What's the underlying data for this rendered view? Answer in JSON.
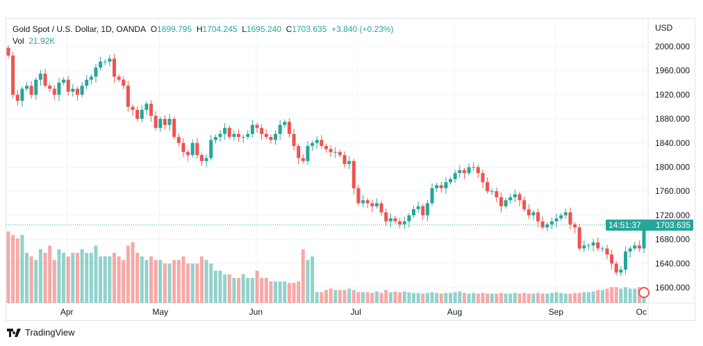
{
  "legend": {
    "symbol": "Gold Spot / U.S. Dollar, 1D, OANDA",
    "open_label": "O",
    "open": "1699.795",
    "high_label": "H",
    "high": "1704.245",
    "low_label": "L",
    "low": "1695.240",
    "close_label": "C",
    "close": "1703.635",
    "change": "+3.840 (+0.23%)",
    "vol_label": "Vol",
    "vol": "21.92K"
  },
  "currency": "USD",
  "current_price": "1703.635",
  "countdown": "14:51:37",
  "brand": "TradingView",
  "colors": {
    "up": "#26a69a",
    "down": "#ef5350"
  },
  "chart_data": {
    "type": "candlestick",
    "title": "Gold Spot / U.S. Dollar, 1D, OANDA",
    "ylim": [
      1580,
      2040
    ],
    "y_ticks": [
      1600,
      1640,
      1680,
      1720,
      1760,
      1800,
      1840,
      1880,
      1920,
      1960,
      2000
    ],
    "y_tick_labels": [
      "1600.000",
      "1640.000",
      "1680.000",
      "1720.000",
      "1760.000",
      "1800.000",
      "1840.000",
      "1880.000",
      "1920.000",
      "1960.000",
      "2000.000"
    ],
    "x_labels": [
      {
        "label": "Apr",
        "index": 14
      },
      {
        "label": "May",
        "index": 34
      },
      {
        "label": "Jun",
        "index": 55
      },
      {
        "label": "Jul",
        "index": 77
      },
      {
        "label": "Aug",
        "index": 98
      },
      {
        "label": "Sep",
        "index": 120
      },
      {
        "label": "Oc",
        "index": 139
      }
    ],
    "first_open": 1998,
    "closes": [
      1985,
      1920,
      1910,
      1930,
      1935,
      1920,
      1945,
      1955,
      1935,
      1930,
      1920,
      1940,
      1945,
      1925,
      1930,
      1920,
      1935,
      1945,
      1950,
      1965,
      1975,
      1975,
      1980,
      1950,
      1945,
      1935,
      1900,
      1895,
      1880,
      1895,
      1905,
      1885,
      1865,
      1880,
      1870,
      1880,
      1850,
      1840,
      1825,
      1820,
      1840,
      1820,
      1810,
      1815,
      1845,
      1850,
      1855,
      1865,
      1850,
      1855,
      1850,
      1850,
      1855,
      1870,
      1865,
      1855,
      1850,
      1845,
      1855,
      1870,
      1875,
      1855,
      1835,
      1815,
      1810,
      1835,
      1840,
      1845,
      1835,
      1830,
      1825,
      1825,
      1820,
      1805,
      1810,
      1765,
      1740,
      1745,
      1740,
      1735,
      1740,
      1725,
      1710,
      1715,
      1710,
      1705,
      1710,
      1720,
      1730,
      1735,
      1720,
      1740,
      1765,
      1770,
      1765,
      1775,
      1780,
      1790,
      1795,
      1790,
      1800,
      1800,
      1790,
      1775,
      1760,
      1760,
      1750,
      1735,
      1745,
      1750,
      1755,
      1745,
      1730,
      1720,
      1725,
      1710,
      1700,
      1705,
      1710,
      1715,
      1720,
      1725,
      1705,
      1700,
      1665,
      1670,
      1670,
      1675,
      1665,
      1665,
      1655,
      1640,
      1625,
      1630,
      1660,
      1665,
      1670,
      1665,
      1704
    ],
    "volume_relative": [
      100,
      95,
      90,
      95,
      70,
      65,
      60,
      75,
      70,
      80,
      60,
      75,
      70,
      65,
      70,
      70,
      75,
      70,
      70,
      80,
      65,
      65,
      65,
      70,
      65,
      60,
      80,
      85,
      70,
      65,
      60,
      65,
      60,
      60,
      55,
      55,
      60,
      60,
      65,
      55,
      55,
      55,
      65,
      60,
      55,
      45,
      45,
      40,
      40,
      35,
      35,
      40,
      35,
      35,
      45,
      35,
      35,
      30,
      30,
      30,
      30,
      28,
      28,
      30,
      75,
      60,
      65,
      15,
      15,
      18,
      20,
      18,
      18,
      18,
      20,
      18,
      15,
      15,
      15,
      14,
      16,
      14,
      18,
      15,
      16,
      15,
      16,
      15,
      14,
      14,
      13,
      14,
      15,
      14,
      13,
      14,
      14,
      15,
      16,
      14,
      13,
      14,
      13,
      14,
      13,
      13,
      13,
      14,
      13,
      13,
      14,
      13,
      14,
      13,
      13,
      14,
      13,
      13,
      14,
      15,
      14,
      13,
      13,
      14,
      14,
      15,
      15,
      16,
      18,
      18,
      20,
      22,
      22,
      20,
      22,
      20,
      20,
      22,
      21
    ]
  }
}
